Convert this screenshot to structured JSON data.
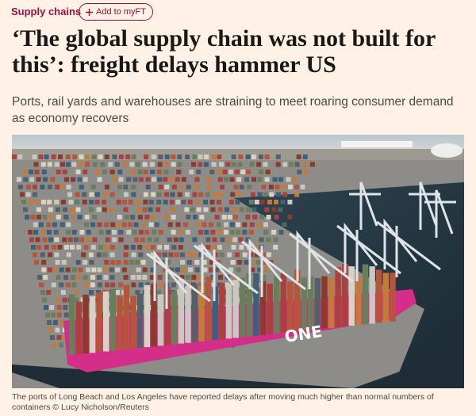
{
  "header": {
    "tag": "Supply chains",
    "button": "Add to myFT"
  },
  "headline": "‘The global supply chain was not built for this’: freight delays hammer US",
  "standfirst": "Ports, rail yards and warehouses are straining to meet roaring consumer demand as economy recovers",
  "image": {
    "ship_label": "ONE"
  },
  "caption": "The ports of Long Beach and Los Angeles have reported delays after moving much higher than normal numbers of containers © Lucy Nicholson/Reuters"
}
